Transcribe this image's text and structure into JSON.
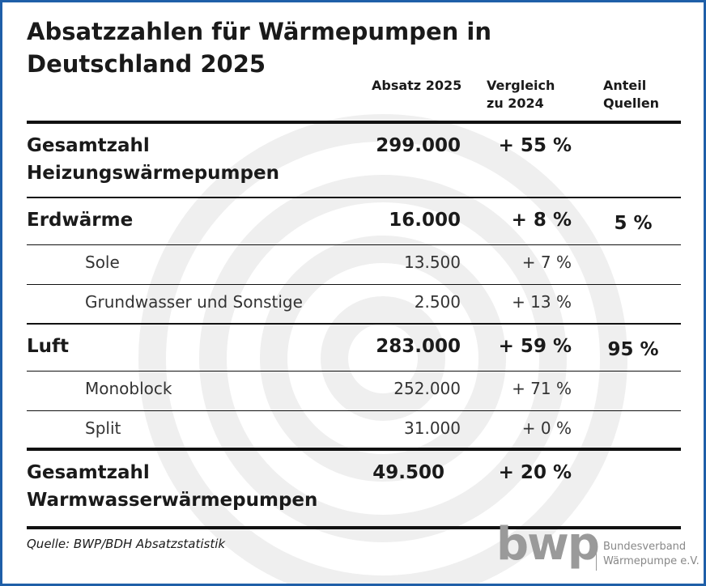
{
  "title": "Absatzzahlen für Wärmepumpen in Deutschland 2025",
  "columns": [
    "Absatz 2025",
    "Vergleich zu 2024",
    "Anteil Quellen"
  ],
  "heating_total": {
    "label": "Gesamtzahl Heizungswärmepumpen",
    "sales": "299.000",
    "change": "+ 55 %"
  },
  "sources": [
    {
      "label": "Erdwärme",
      "sales": "16.000",
      "change": "+ 8 %",
      "share": "5 %",
      "types": [
        {
          "label": "Sole",
          "sales": "13.500",
          "change": "+ 7 %"
        },
        {
          "label": "Grundwasser und Sonstige",
          "sales": "2.500",
          "change": "+ 13 %"
        }
      ]
    },
    {
      "label": "Luft",
      "sales": "283.000",
      "change": "+ 59 %",
      "share": "95 %",
      "types": [
        {
          "label": "Monoblock",
          "sales": "252.000",
          "change": "+ 71 %"
        },
        {
          "label": "Split",
          "sales": "31.000",
          "change": "+ 0 %"
        }
      ]
    }
  ],
  "water_total": {
    "label": "Gesamtzahl Warmwasserwärmepumpen",
    "sales": "49.500",
    "change": "+ 20 %"
  },
  "source_note": "Quelle: BWP/BDH Absatzstatistik",
  "logo": {
    "mark": "bwp",
    "name": [
      "Bundesverband",
      "Wärmepumpe e.V."
    ]
  }
}
